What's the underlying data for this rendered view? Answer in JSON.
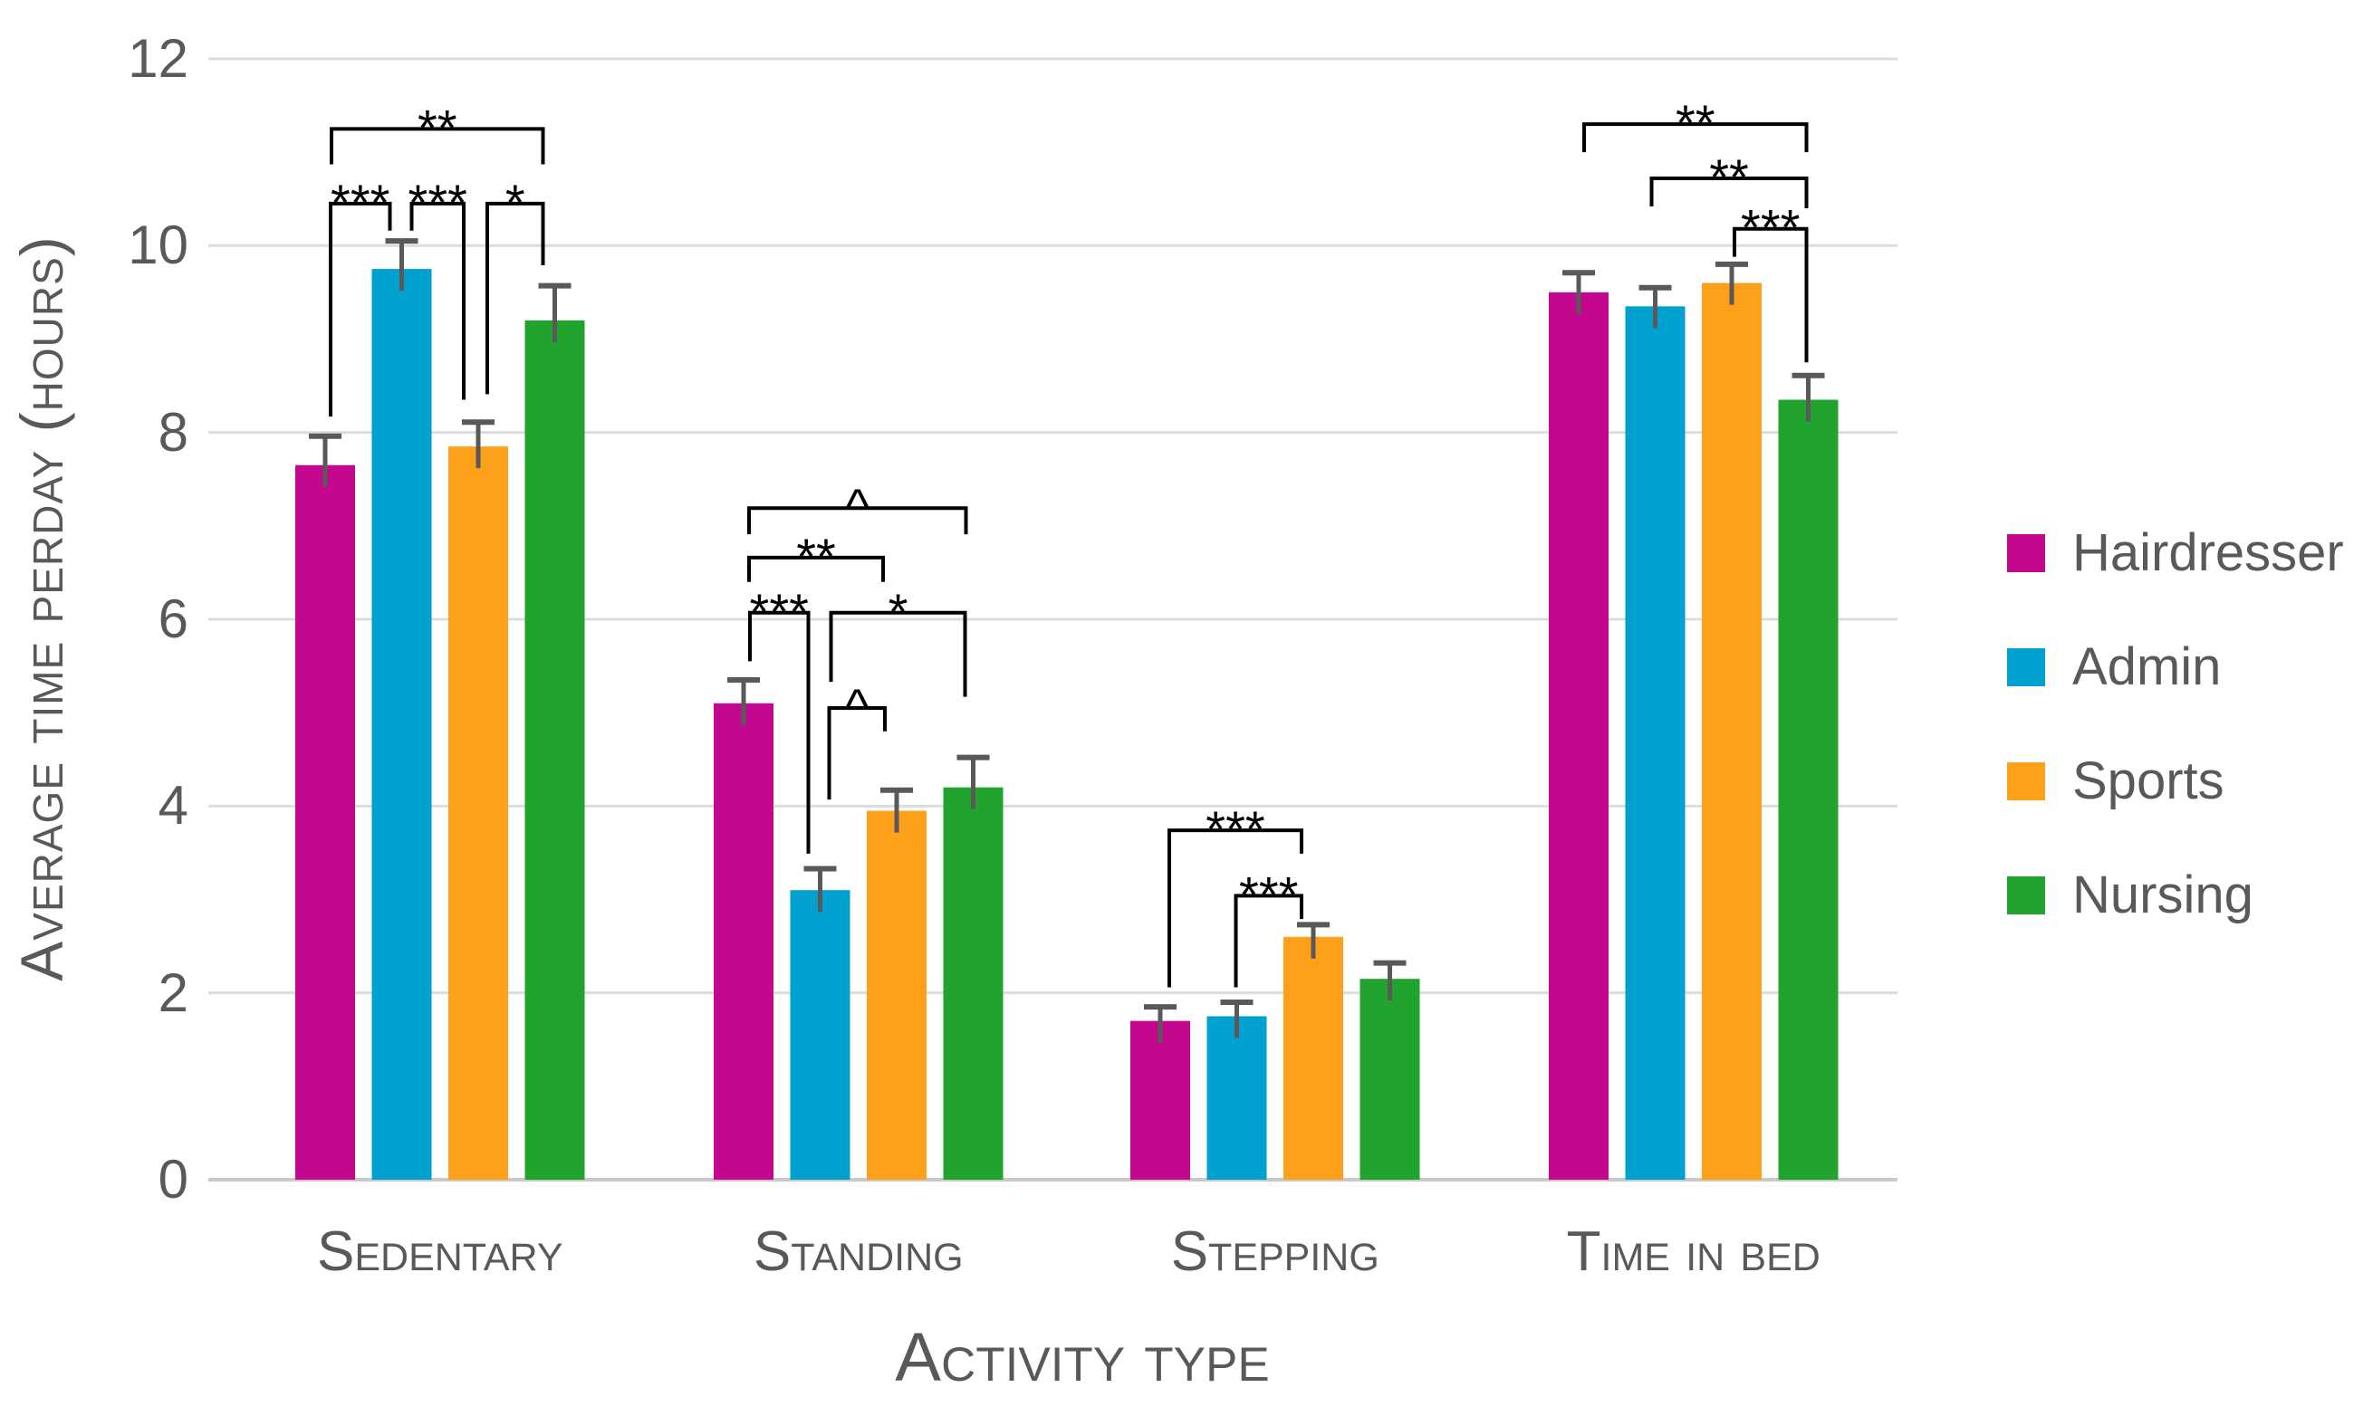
{
  "chart_data": {
    "type": "bar",
    "title": "",
    "xlabel": "Activity type",
    "ylabel": "Average time perday (hours)",
    "categories": [
      "Sedentary",
      "Standing",
      "Stepping",
      "Time in bed"
    ],
    "series": [
      {
        "name": "Hairdresser",
        "color": "#C4078F",
        "values": [
          7.65,
          5.1,
          1.7,
          9.5
        ],
        "errors": [
          0.31,
          0.25,
          0.15,
          0.21
        ]
      },
      {
        "name": "Admin",
        "color": "#00A1CF",
        "values": [
          9.75,
          3.1,
          1.75,
          9.35
        ],
        "errors": [
          0.3,
          0.23,
          0.15,
          0.2
        ]
      },
      {
        "name": "Sports",
        "color": "#FFA01B",
        "values": [
          7.85,
          3.95,
          2.6,
          9.6
        ],
        "errors": [
          0.26,
          0.22,
          0.13,
          0.2
        ]
      },
      {
        "name": "Nursing",
        "color": "#20A42E",
        "values": [
          9.2,
          4.2,
          2.15,
          8.35
        ],
        "errors": [
          0.37,
          0.32,
          0.17,
          0.26
        ]
      }
    ],
    "y_ticks": [
      0,
      2,
      4,
      6,
      8,
      10,
      12
    ],
    "ylim": [
      0,
      12
    ],
    "grid": true,
    "legend_position": "right",
    "significance_brackets": [
      {
        "group": 0,
        "from": 0,
        "to": 1,
        "label": "***",
        "height": 10.45,
        "left_drop_to": 8.17,
        "right_drop_to": 10.16,
        "from_dx": 6,
        "to_dx": -13
      },
      {
        "group": 0,
        "from": 1,
        "to": 2,
        "label": "***",
        "height": 10.45,
        "left_drop_to": 10.16,
        "right_drop_to": 8.35,
        "from_dx": 11,
        "to_dx": -16
      },
      {
        "group": 0,
        "from": 2,
        "to": 3,
        "label": "*",
        "height": 10.45,
        "left_drop_to": 8.41,
        "right_drop_to": 9.79,
        "from_dx": 10,
        "to_dx": -13
      },
      {
        "group": 0,
        "from": 0,
        "to": 3,
        "label": "**",
        "height": 11.25,
        "left_drop_to": 10.87,
        "right_drop_to": 10.87,
        "from_dx": 7,
        "to_dx": -13
      },
      {
        "group": 1,
        "from": 0,
        "to": 3,
        "label": "^",
        "height": 7.19,
        "left_drop_to": 6.91,
        "right_drop_to": 6.91,
        "from_dx": 6,
        "to_dx": -8
      },
      {
        "group": 1,
        "from": 0,
        "to": 2,
        "label": "**",
        "height": 6.66,
        "left_drop_to": 6.4,
        "right_drop_to": 6.4,
        "from_dx": 6,
        "to_dx": -15
      },
      {
        "group": 1,
        "from": 0,
        "to": 1,
        "label": "***",
        "height": 6.07,
        "left_drop_to": 5.55,
        "right_drop_to": 3.49,
        "from_dx": 7,
        "to_dx": -13
      },
      {
        "group": 1,
        "from": 1,
        "to": 3,
        "label": "*",
        "height": 6.07,
        "left_drop_to": 5.33,
        "right_drop_to": 5.17,
        "from_dx": 12,
        "to_dx": -9
      },
      {
        "group": 1,
        "from": 1,
        "to": 2,
        "label": "^",
        "height": 5.05,
        "left_drop_to": 4.07,
        "right_drop_to": 4.8,
        "from_dx": 10,
        "to_dx": -13
      },
      {
        "group": 2,
        "from": 0,
        "to": 2,
        "label": "***",
        "height": 3.74,
        "left_drop_to": 2.06,
        "right_drop_to": 3.49,
        "from_dx": 10,
        "to_dx": -13
      },
      {
        "group": 2,
        "from": 1,
        "to": 2,
        "label": "***",
        "height": 3.04,
        "left_drop_to": 2.06,
        "right_drop_to": 2.79,
        "from_dx": -1,
        "to_dx": -13
      },
      {
        "group": 3,
        "from": 0,
        "to": 3,
        "label": "**",
        "height": 11.3,
        "left_drop_to": 11.0,
        "right_drop_to": 11.0,
        "from_dx": 6,
        "to_dx": -2
      },
      {
        "group": 3,
        "from": 1,
        "to": 3,
        "label": "**",
        "height": 10.72,
        "left_drop_to": 10.42,
        "right_drop_to": 10.4,
        "from_dx": -4,
        "to_dx": -2
      },
      {
        "group": 3,
        "from": 2,
        "to": 3,
        "label": "***",
        "height": 10.18,
        "left_drop_to": 9.88,
        "right_drop_to": 8.75,
        "from_dx": 3,
        "to_dx": -2
      }
    ],
    "colors": {
      "gridline": "#DCDCDC",
      "baseline": "#C9C9C9",
      "error_bar": "#595959",
      "bracket": "#000000",
      "axis_text": "#595959"
    }
  }
}
